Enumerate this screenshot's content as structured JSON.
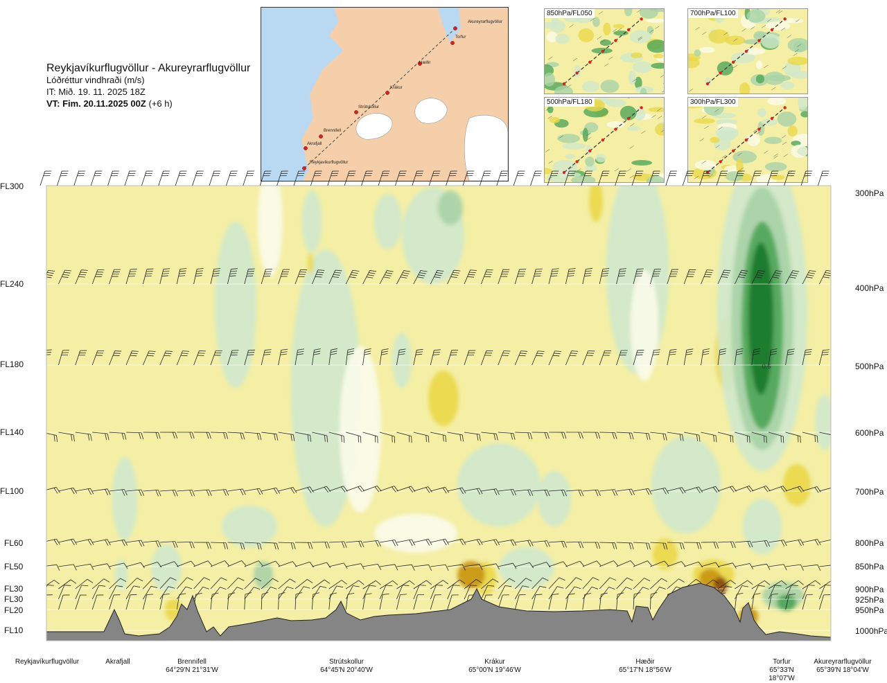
{
  "header": {
    "route": "Reykjavíkurflugvöllur - Akureyrarflugvöllur",
    "parameter": "Lóðréttur vindhraði (m/s)",
    "issue_time": "IT: Mið. 19. 11. 2025 18Z",
    "valid_time": "VT: Fim. 20.11.2025 00Z",
    "lead_time": "(+6 h)"
  },
  "map": {
    "places": [
      "Akureyrarflugvöllur",
      "Torfur",
      "Hæðir",
      "Krákur",
      "Strútskollur",
      "Brennifell",
      "Akrafjall",
      "Reykjavíkurflugvöllur"
    ],
    "land_color": "#f5cfa9",
    "sea_color": "#b9d9f2",
    "glacier_color": "#ffffff",
    "route_color": "#444444",
    "point_color": "#e02020"
  },
  "thumbnails": [
    {
      "label": "850hPa/FL050"
    },
    {
      "label": "700hPa/FL100"
    },
    {
      "label": "500hPa/FL180"
    },
    {
      "label": "300hPa/FL300"
    }
  ],
  "chart_data": {
    "type": "heatmap",
    "title": "Lóðréttur vindhraði (m/s)",
    "x_locations": [
      {
        "name": "Reykjavíkurflugvöllur",
        "coord": ""
      },
      {
        "name": "Akrafjall",
        "coord": ""
      },
      {
        "name": "Brennifell",
        "coord": "64°29'N 21°31'W"
      },
      {
        "name": "Strútskollur",
        "coord": "64°45'N 20°40'W"
      },
      {
        "name": "Krákur",
        "coord": "65°00'N 19°46'W"
      },
      {
        "name": "Hæðir",
        "coord": "65°17'N 18°56'W"
      },
      {
        "name": "Torfur",
        "coord": "65°33'N 18°07'W"
      },
      {
        "name": "Akureyrarflugvöllur",
        "coord": "65°39'N 18°04'W"
      }
    ],
    "flight_levels": [
      "FL300",
      "FL240",
      "FL180",
      "FL140",
      "FL100",
      "FL60",
      "FL50",
      "FL30",
      "FL30",
      "FL20",
      "FL10"
    ],
    "pressure_levels": [
      "300hPa",
      "400hPa",
      "500hPa",
      "600hPa",
      "700hPa",
      "800hPa",
      "850hPa",
      "900hPa",
      "925hPa",
      "950hPa",
      "1000hPa"
    ],
    "annotations": [
      "0.6"
    ],
    "colors": {
      "updraft_weak": "#f4efa5",
      "updraft_mod": "#ead84a",
      "updraft_strong": "#c9960e",
      "updraft_very_strong": "#8a4a0c",
      "downdraft_weak": "#cfe8cc",
      "downdraft_mod": "#a9d3a7",
      "downdraft_strong": "#4fa659",
      "downdraft_very_strong": "#177a2a",
      "neutral": "#fbfbe9",
      "terrain": "#858585"
    }
  }
}
